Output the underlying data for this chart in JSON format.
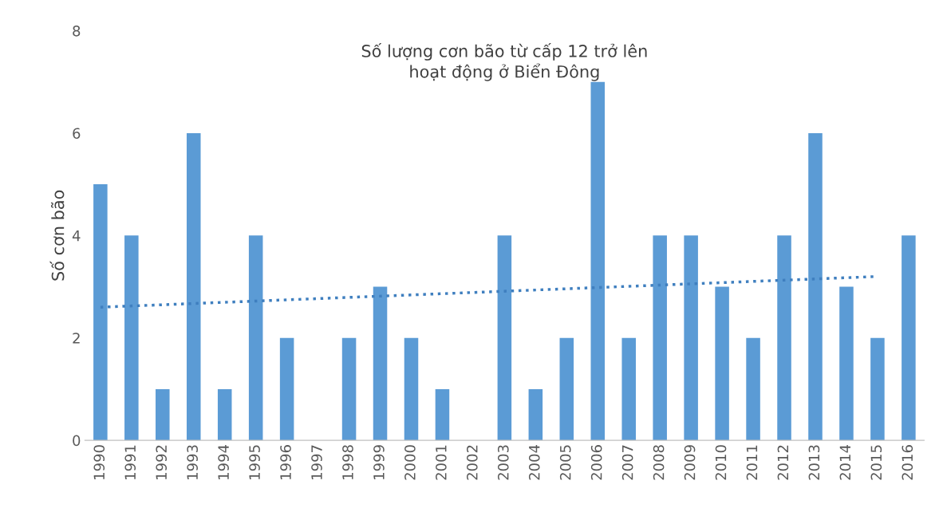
{
  "chart_data": {
    "type": "bar",
    "title": "Số lượng cơn bão từ cấp 12 trở lên\nhoạt động ở Biển Đông",
    "ylabel": "Số cơn bão",
    "x": [
      1990,
      1991,
      1992,
      1993,
      1994,
      1995,
      1996,
      1997,
      1998,
      1999,
      2000,
      2001,
      2002,
      2003,
      2004,
      2005,
      2006,
      2007,
      2008,
      2009,
      2010,
      2011,
      2012,
      2013,
      2014,
      2015,
      2016
    ],
    "series": [
      {
        "color": "#5b9bd5",
        "values": [
          5,
          4,
          1,
          6,
          1,
          4,
          2,
          0,
          2,
          3,
          2,
          1,
          0,
          4,
          1,
          2,
          7,
          2,
          4,
          4,
          3,
          2,
          4,
          6,
          3,
          2,
          4
        ]
      },
      {
        "type": "line",
        "color": "#3f7fbf",
        "line_style": "dotted",
        "x": [
          1990,
          2015
        ],
        "values": [
          2.6,
          3.2
        ]
      }
    ],
    "xlim": [
      1989.5,
      2016.5
    ],
    "xticks": [
      1990,
      1991,
      1992,
      1993,
      1994,
      1995,
      1996,
      1997,
      1998,
      1999,
      2000,
      2001,
      2002,
      2003,
      2004,
      2005,
      2006,
      2007,
      2008,
      2009,
      2010,
      2011,
      2012,
      2013,
      2014,
      2015,
      2016
    ],
    "ylim": [
      0,
      8
    ],
    "yticks": [
      0,
      2,
      4,
      6,
      8
    ],
    "grid": false,
    "legend": false
  }
}
